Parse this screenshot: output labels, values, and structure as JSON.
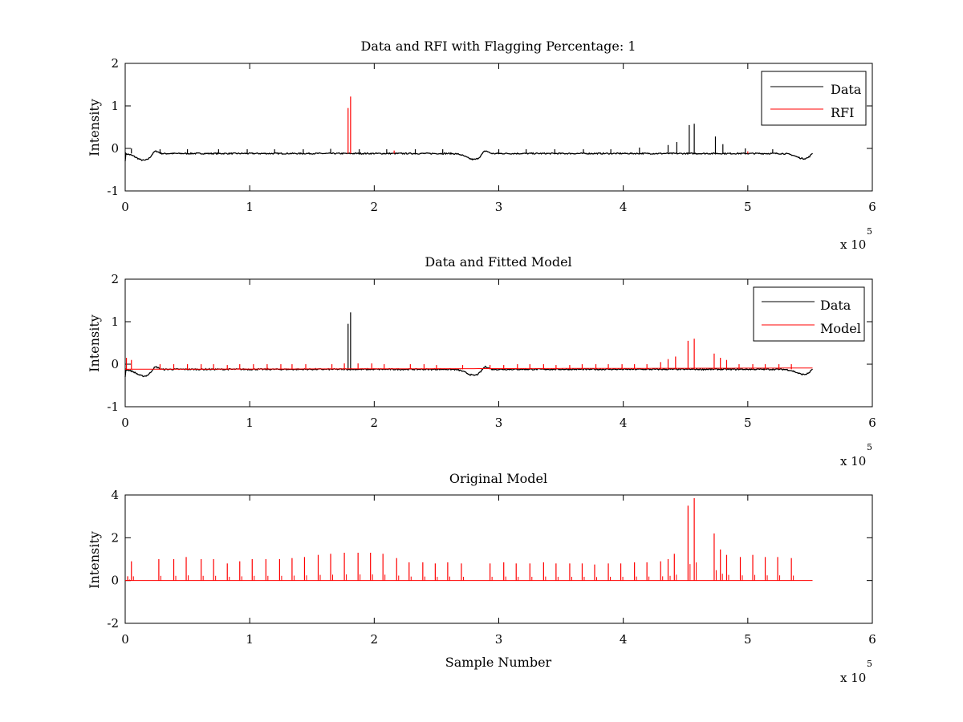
{
  "chart_data": [
    {
      "type": "line",
      "title": "Data and RFI with Flagging Percentage: 1",
      "xlabel": "",
      "ylabel": "Intensity",
      "xlim": [
        0,
        600000
      ],
      "ylim": [
        -1,
        2
      ],
      "x_ticks": [
        "0",
        "1",
        "2",
        "3",
        "4",
        "5",
        "6"
      ],
      "y_ticks": [
        "-1",
        "0",
        "1",
        "2"
      ],
      "x_multiplier": {
        "base": "x 10",
        "exponent": "5"
      },
      "grid": false,
      "legend_position": "top-right",
      "baseline": -0.12,
      "series": [
        {
          "name": "Data",
          "color": "#000000",
          "dips": [
            {
              "x": 15000,
              "y": -0.28
            },
            {
              "x": 280000,
              "y": -0.26
            },
            {
              "x": 545000,
              "y": -0.24
            }
          ],
          "spikes": [
            {
              "x": 5000,
              "y": 0.0
            },
            {
              "x": 28000,
              "y": -0.02
            },
            {
              "x": 50000,
              "y": -0.02
            },
            {
              "x": 75000,
              "y": -0.02
            },
            {
              "x": 98000,
              "y": -0.02
            },
            {
              "x": 120000,
              "y": -0.02
            },
            {
              "x": 143000,
              "y": -0.02
            },
            {
              "x": 165000,
              "y": -0.01
            },
            {
              "x": 188000,
              "y": -0.02
            },
            {
              "x": 210000,
              "y": -0.02
            },
            {
              "x": 233000,
              "y": -0.02
            },
            {
              "x": 255000,
              "y": -0.02
            },
            {
              "x": 300000,
              "y": -0.02
            },
            {
              "x": 322000,
              "y": -0.02
            },
            {
              "x": 345000,
              "y": -0.02
            },
            {
              "x": 368000,
              "y": -0.02
            },
            {
              "x": 390000,
              "y": -0.02
            },
            {
              "x": 413000,
              "y": 0.02
            },
            {
              "x": 436000,
              "y": 0.08
            },
            {
              "x": 443000,
              "y": 0.15
            },
            {
              "x": 453000,
              "y": 0.55
            },
            {
              "x": 457000,
              "y": 0.58
            },
            {
              "x": 474000,
              "y": 0.28
            },
            {
              "x": 480000,
              "y": 0.1
            },
            {
              "x": 498000,
              "y": 0.0
            },
            {
              "x": 520000,
              "y": -0.02
            }
          ]
        },
        {
          "name": "RFI",
          "color": "#ff0000",
          "spikes": [
            {
              "x": 179000,
              "y": 0.95
            },
            {
              "x": 181000,
              "y": 1.22
            },
            {
              "x": 216000,
              "y": -0.05
            },
            {
              "x": 500000,
              "y": -0.07
            }
          ]
        }
      ]
    },
    {
      "type": "line",
      "title": "Data and Fitted Model",
      "xlabel": "",
      "ylabel": "Intensity",
      "xlim": [
        0,
        600000
      ],
      "ylim": [
        -1,
        2
      ],
      "x_ticks": [
        "0",
        "1",
        "2",
        "3",
        "4",
        "5",
        "6"
      ],
      "y_ticks": [
        "-1",
        "0",
        "1",
        "2"
      ],
      "x_multiplier": {
        "base": "x 10",
        "exponent": "5"
      },
      "grid": false,
      "legend_position": "top-right",
      "baseline": -0.12,
      "series": [
        {
          "name": "Data",
          "color": "#000000",
          "dips": [
            {
              "x": 15000,
              "y": -0.28
            },
            {
              "x": 280000,
              "y": -0.26
            },
            {
              "x": 545000,
              "y": -0.24
            }
          ],
          "spikes": [
            {
              "x": 179000,
              "y": 0.95
            },
            {
              "x": 181000,
              "y": 1.22
            }
          ]
        },
        {
          "name": "Model",
          "color": "#ff0000",
          "spikes": [
            {
              "x": 1000,
              "y": 0.15
            },
            {
              "x": 5000,
              "y": 0.1
            },
            {
              "x": 28000,
              "y": 0.0
            },
            {
              "x": 39000,
              "y": 0.0
            },
            {
              "x": 50000,
              "y": 0.0
            },
            {
              "x": 61000,
              "y": 0.0
            },
            {
              "x": 71000,
              "y": 0.0
            },
            {
              "x": 82000,
              "y": -0.02
            },
            {
              "x": 92000,
              "y": 0.0
            },
            {
              "x": 103000,
              "y": 0.0
            },
            {
              "x": 114000,
              "y": 0.0
            },
            {
              "x": 125000,
              "y": 0.0
            },
            {
              "x": 134000,
              "y": 0.0
            },
            {
              "x": 145000,
              "y": 0.0
            },
            {
              "x": 166000,
              "y": 0.0
            },
            {
              "x": 176000,
              "y": 0.02
            },
            {
              "x": 187000,
              "y": 0.02
            },
            {
              "x": 198000,
              "y": 0.02
            },
            {
              "x": 208000,
              "y": 0.0
            },
            {
              "x": 229000,
              "y": 0.0
            },
            {
              "x": 240000,
              "y": 0.0
            },
            {
              "x": 250000,
              "y": -0.02
            },
            {
              "x": 271000,
              "y": -0.02
            },
            {
              "x": 293000,
              "y": -0.02
            },
            {
              "x": 304000,
              "y": -0.02
            },
            {
              "x": 315000,
              "y": 0.0
            },
            {
              "x": 325000,
              "y": 0.0
            },
            {
              "x": 336000,
              "y": 0.0
            },
            {
              "x": 346000,
              "y": -0.02
            },
            {
              "x": 357000,
              "y": -0.02
            },
            {
              "x": 367000,
              "y": 0.0
            },
            {
              "x": 378000,
              "y": 0.0
            },
            {
              "x": 388000,
              "y": 0.0
            },
            {
              "x": 399000,
              "y": 0.0
            },
            {
              "x": 409000,
              "y": 0.0
            },
            {
              "x": 419000,
              "y": 0.0
            },
            {
              "x": 430000,
              "y": 0.05
            },
            {
              "x": 436000,
              "y": 0.12
            },
            {
              "x": 442000,
              "y": 0.18
            },
            {
              "x": 452000,
              "y": 0.55
            },
            {
              "x": 457000,
              "y": 0.6
            },
            {
              "x": 473000,
              "y": 0.25
            },
            {
              "x": 478000,
              "y": 0.15
            },
            {
              "x": 483000,
              "y": 0.1
            },
            {
              "x": 493000,
              "y": 0.0
            },
            {
              "x": 504000,
              "y": 0.0
            },
            {
              "x": 514000,
              "y": 0.0
            },
            {
              "x": 525000,
              "y": 0.0
            },
            {
              "x": 535000,
              "y": 0.0
            }
          ]
        }
      ]
    },
    {
      "type": "line",
      "title": "Original Model",
      "xlabel": "Sample Number",
      "ylabel": "Intensity",
      "xlim": [
        0,
        600000
      ],
      "ylim": [
        -2,
        4
      ],
      "x_ticks": [
        "0",
        "1",
        "2",
        "3",
        "4",
        "5",
        "6"
      ],
      "y_ticks": [
        "-2",
        "0",
        "2",
        "4"
      ],
      "x_multiplier": {
        "base": "x 10",
        "exponent": "5"
      },
      "grid": false,
      "legend_position": "none",
      "baseline": 0,
      "series": [
        {
          "name": "",
          "color": "#ff0000",
          "spikes": [
            {
              "x": 2000,
              "y": 0.2
            },
            {
              "x": 5000,
              "y": 0.9
            },
            {
              "x": 27000,
              "y": 1.0
            },
            {
              "x": 39000,
              "y": 1.0
            },
            {
              "x": 49000,
              "y": 1.1
            },
            {
              "x": 61000,
              "y": 1.0
            },
            {
              "x": 71000,
              "y": 1.0
            },
            {
              "x": 82000,
              "y": 0.8
            },
            {
              "x": 92000,
              "y": 0.9
            },
            {
              "x": 102000,
              "y": 1.0
            },
            {
              "x": 113000,
              "y": 1.0
            },
            {
              "x": 124000,
              "y": 1.0
            },
            {
              "x": 134000,
              "y": 1.05
            },
            {
              "x": 144000,
              "y": 1.1
            },
            {
              "x": 155000,
              "y": 1.2
            },
            {
              "x": 165000,
              "y": 1.25
            },
            {
              "x": 176000,
              "y": 1.3
            },
            {
              "x": 187000,
              "y": 1.3
            },
            {
              "x": 197000,
              "y": 1.3
            },
            {
              "x": 207000,
              "y": 1.25
            },
            {
              "x": 218000,
              "y": 1.05
            },
            {
              "x": 228000,
              "y": 0.85
            },
            {
              "x": 239000,
              "y": 0.85
            },
            {
              "x": 249000,
              "y": 0.8
            },
            {
              "x": 259000,
              "y": 0.85
            },
            {
              "x": 270000,
              "y": 0.8
            },
            {
              "x": 293000,
              "y": 0.8
            },
            {
              "x": 304000,
              "y": 0.85
            },
            {
              "x": 314000,
              "y": 0.8
            },
            {
              "x": 325000,
              "y": 0.8
            },
            {
              "x": 336000,
              "y": 0.85
            },
            {
              "x": 346000,
              "y": 0.8
            },
            {
              "x": 357000,
              "y": 0.8
            },
            {
              "x": 367000,
              "y": 0.8
            },
            {
              "x": 377000,
              "y": 0.75
            },
            {
              "x": 388000,
              "y": 0.8
            },
            {
              "x": 398000,
              "y": 0.8
            },
            {
              "x": 409000,
              "y": 0.85
            },
            {
              "x": 419000,
              "y": 0.85
            },
            {
              "x": 430000,
              "y": 0.9
            },
            {
              "x": 436000,
              "y": 1.0
            },
            {
              "x": 441000,
              "y": 1.25
            },
            {
              "x": 452000,
              "y": 3.5
            },
            {
              "x": 457000,
              "y": 3.85
            },
            {
              "x": 473000,
              "y": 2.2
            },
            {
              "x": 478000,
              "y": 1.45
            },
            {
              "x": 483000,
              "y": 1.2
            },
            {
              "x": 494000,
              "y": 1.1
            },
            {
              "x": 504000,
              "y": 1.2
            },
            {
              "x": 514000,
              "y": 1.1
            },
            {
              "x": 524000,
              "y": 1.1
            },
            {
              "x": 535000,
              "y": 1.05
            }
          ]
        }
      ]
    }
  ]
}
